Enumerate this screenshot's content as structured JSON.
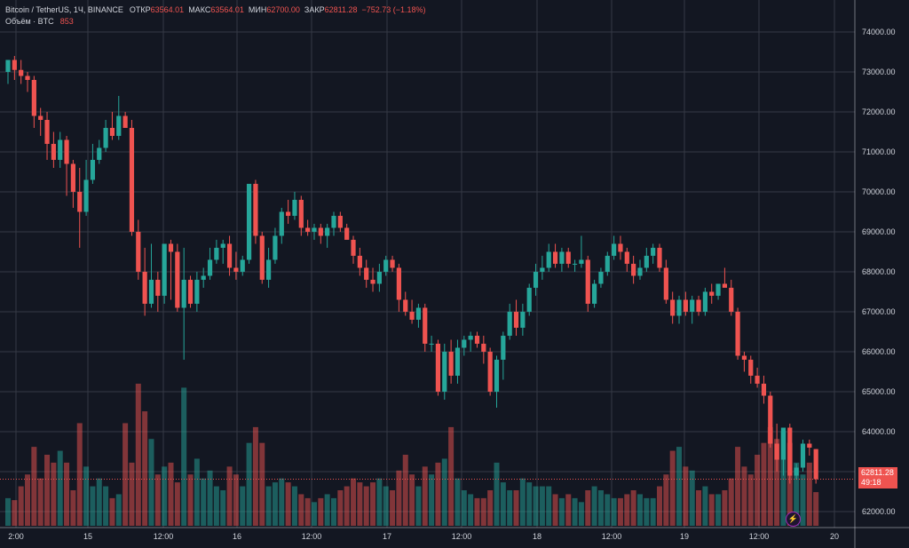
{
  "legend": {
    "symbol": "Bitcoin / TetherUS, 1Ч, BINANCE",
    "open_label": "ОТКР",
    "open": "63564.01",
    "high_label": "МАКС",
    "high": "63564.01",
    "low_label": "МИН",
    "low": "62700.00",
    "close_label": "ЗАКР",
    "close": "62811.28",
    "change": "−752.73 (−1.18%)",
    "volume_label": "Объём · BTC",
    "volume": "853"
  },
  "price_tag": {
    "price": "62811.28",
    "countdown": "49:18"
  },
  "colors": {
    "background": "#131722",
    "grid": "#363a45",
    "up": "#26a69a",
    "down": "#ef5350",
    "text": "#d1d4dc"
  },
  "chart_data": {
    "type": "candlestick",
    "title": "Bitcoin / TetherUS, 1Ч, BINANCE",
    "y_range": [
      61600,
      74800
    ],
    "y_ticks": [
      "74000.00",
      "73000.00",
      "72000.00",
      "71000.00",
      "70000.00",
      "69000.00",
      "68000.00",
      "67000.00",
      "66000.00",
      "65000.00",
      "64000.00",
      "63000.00",
      "62000.00"
    ],
    "x_ticks": [
      "2:00",
      "15",
      "12:00",
      "16",
      "12:00",
      "17",
      "12:00",
      "18",
      "12:00",
      "19",
      "12:00",
      "20"
    ],
    "volume_max": 3600,
    "candles": [
      {
        "o": 73000,
        "h": 73200,
        "l": 72700,
        "c": 73300,
        "v": 700
      },
      {
        "o": 73300,
        "h": 73400,
        "l": 72800,
        "c": 73050,
        "v": 650
      },
      {
        "o": 73050,
        "h": 73300,
        "l": 72700,
        "c": 72900,
        "v": 1000
      },
      {
        "o": 72900,
        "h": 73000,
        "l": 72500,
        "c": 72800,
        "v": 1300
      },
      {
        "o": 72800,
        "h": 72900,
        "l": 71600,
        "c": 71900,
        "v": 2000
      },
      {
        "o": 71900,
        "h": 72100,
        "l": 71400,
        "c": 71800,
        "v": 1200
      },
      {
        "o": 71800,
        "h": 72000,
        "l": 70800,
        "c": 71200,
        "v": 1800
      },
      {
        "o": 71200,
        "h": 71500,
        "l": 70600,
        "c": 70800,
        "v": 1600
      },
      {
        "o": 70800,
        "h": 71500,
        "l": 70600,
        "c": 71300,
        "v": 1900
      },
      {
        "o": 71300,
        "h": 71400,
        "l": 69900,
        "c": 70700,
        "v": 1600
      },
      {
        "o": 70700,
        "h": 70800,
        "l": 69600,
        "c": 70000,
        "v": 900
      },
      {
        "o": 70000,
        "h": 70600,
        "l": 68600,
        "c": 69500,
        "v": 2600
      },
      {
        "o": 69500,
        "h": 70800,
        "l": 69400,
        "c": 70300,
        "v": 1500
      },
      {
        "o": 70300,
        "h": 71200,
        "l": 70200,
        "c": 70800,
        "v": 1000
      },
      {
        "o": 70800,
        "h": 71300,
        "l": 70700,
        "c": 71100,
        "v": 1200
      },
      {
        "o": 71100,
        "h": 71800,
        "l": 71000,
        "c": 71600,
        "v": 1000
      },
      {
        "o": 71600,
        "h": 72000,
        "l": 71300,
        "c": 71400,
        "v": 700
      },
      {
        "o": 71400,
        "h": 72400,
        "l": 71300,
        "c": 71900,
        "v": 800
      },
      {
        "o": 71900,
        "h": 72000,
        "l": 71600,
        "c": 71600,
        "v": 2600
      },
      {
        "o": 71600,
        "h": 71800,
        "l": 68900,
        "c": 69000,
        "v": 1600
      },
      {
        "o": 69000,
        "h": 69300,
        "l": 67800,
        "c": 68000,
        "v": 3600
      },
      {
        "o": 68000,
        "h": 68600,
        "l": 66900,
        "c": 67200,
        "v": 2900
      },
      {
        "o": 67200,
        "h": 68700,
        "l": 67100,
        "c": 67800,
        "v": 2200
      },
      {
        "o": 67800,
        "h": 68000,
        "l": 67000,
        "c": 67400,
        "v": 1300
      },
      {
        "o": 67400,
        "h": 68700,
        "l": 67200,
        "c": 68700,
        "v": 1500
      },
      {
        "o": 68700,
        "h": 68800,
        "l": 67300,
        "c": 68500,
        "v": 1600
      },
      {
        "o": 68500,
        "h": 68700,
        "l": 67000,
        "c": 67100,
        "v": 1100
      },
      {
        "o": 67100,
        "h": 68600,
        "l": 65800,
        "c": 67800,
        "v": 3500
      },
      {
        "o": 67800,
        "h": 67900,
        "l": 67100,
        "c": 67200,
        "v": 1300
      },
      {
        "o": 67200,
        "h": 68000,
        "l": 67000,
        "c": 67800,
        "v": 1700
      },
      {
        "o": 67800,
        "h": 68100,
        "l": 67600,
        "c": 67900,
        "v": 1200
      },
      {
        "o": 67900,
        "h": 68600,
        "l": 67800,
        "c": 68300,
        "v": 1400
      },
      {
        "o": 68300,
        "h": 68800,
        "l": 68200,
        "c": 68600,
        "v": 1000
      },
      {
        "o": 68600,
        "h": 68800,
        "l": 68200,
        "c": 68700,
        "v": 900
      },
      {
        "o": 68700,
        "h": 68900,
        "l": 67900,
        "c": 68100,
        "v": 1500
      },
      {
        "o": 68100,
        "h": 68500,
        "l": 67800,
        "c": 68000,
        "v": 1300
      },
      {
        "o": 68000,
        "h": 68400,
        "l": 67900,
        "c": 68300,
        "v": 1000
      },
      {
        "o": 68300,
        "h": 70200,
        "l": 68200,
        "c": 70200,
        "v": 2100
      },
      {
        "o": 70200,
        "h": 70300,
        "l": 68700,
        "c": 68900,
        "v": 2500
      },
      {
        "o": 68900,
        "h": 69000,
        "l": 67700,
        "c": 67800,
        "v": 2100
      },
      {
        "o": 67800,
        "h": 68600,
        "l": 67600,
        "c": 68300,
        "v": 1000
      },
      {
        "o": 68300,
        "h": 69100,
        "l": 68200,
        "c": 68900,
        "v": 1100
      },
      {
        "o": 68900,
        "h": 69600,
        "l": 68700,
        "c": 69500,
        "v": 1200
      },
      {
        "o": 69500,
        "h": 69800,
        "l": 69200,
        "c": 69400,
        "v": 1100
      },
      {
        "o": 69400,
        "h": 70000,
        "l": 69300,
        "c": 69800,
        "v": 1000
      },
      {
        "o": 69800,
        "h": 69900,
        "l": 68900,
        "c": 69100,
        "v": 800
      },
      {
        "o": 69100,
        "h": 69300,
        "l": 68900,
        "c": 69000,
        "v": 700
      },
      {
        "o": 69000,
        "h": 69200,
        "l": 68800,
        "c": 69100,
        "v": 600
      },
      {
        "o": 69100,
        "h": 69200,
        "l": 68700,
        "c": 68900,
        "v": 700
      },
      {
        "o": 68900,
        "h": 69200,
        "l": 68600,
        "c": 69100,
        "v": 800
      },
      {
        "o": 69100,
        "h": 69500,
        "l": 68900,
        "c": 69400,
        "v": 700
      },
      {
        "o": 69400,
        "h": 69500,
        "l": 69000,
        "c": 69100,
        "v": 900
      },
      {
        "o": 69100,
        "h": 69200,
        "l": 68800,
        "c": 68800,
        "v": 1000
      },
      {
        "o": 68800,
        "h": 68900,
        "l": 68200,
        "c": 68400,
        "v": 1200
      },
      {
        "o": 68400,
        "h": 68600,
        "l": 67900,
        "c": 68100,
        "v": 1100
      },
      {
        "o": 68100,
        "h": 68300,
        "l": 67600,
        "c": 67800,
        "v": 1000
      },
      {
        "o": 67800,
        "h": 68100,
        "l": 67500,
        "c": 67700,
        "v": 1100
      },
      {
        "o": 67700,
        "h": 68200,
        "l": 67500,
        "c": 68000,
        "v": 1200
      },
      {
        "o": 68000,
        "h": 68400,
        "l": 67900,
        "c": 68300,
        "v": 1000
      },
      {
        "o": 68300,
        "h": 68400,
        "l": 68000,
        "c": 68100,
        "v": 900
      },
      {
        "o": 68100,
        "h": 68200,
        "l": 67000,
        "c": 67300,
        "v": 1400
      },
      {
        "o": 67300,
        "h": 67500,
        "l": 66900,
        "c": 67000,
        "v": 1800
      },
      {
        "o": 67000,
        "h": 67300,
        "l": 66700,
        "c": 66800,
        "v": 1300
      },
      {
        "o": 66800,
        "h": 67200,
        "l": 66600,
        "c": 67100,
        "v": 1000
      },
      {
        "o": 67100,
        "h": 67200,
        "l": 66000,
        "c": 66200,
        "v": 1500
      },
      {
        "o": 66200,
        "h": 66400,
        "l": 66000,
        "c": 66200,
        "v": 1300
      },
      {
        "o": 66200,
        "h": 66300,
        "l": 64900,
        "c": 65000,
        "v": 1600
      },
      {
        "o": 65000,
        "h": 66200,
        "l": 64800,
        "c": 66000,
        "v": 1700
      },
      {
        "o": 66000,
        "h": 66300,
        "l": 65200,
        "c": 65400,
        "v": 2500
      },
      {
        "o": 65400,
        "h": 66300,
        "l": 65200,
        "c": 66100,
        "v": 1200
      },
      {
        "o": 66100,
        "h": 66400,
        "l": 65900,
        "c": 66300,
        "v": 900
      },
      {
        "o": 66300,
        "h": 66500,
        "l": 66000,
        "c": 66400,
        "v": 800
      },
      {
        "o": 66400,
        "h": 66500,
        "l": 66100,
        "c": 66200,
        "v": 700
      },
      {
        "o": 66200,
        "h": 66400,
        "l": 65700,
        "c": 66000,
        "v": 700
      },
      {
        "o": 66000,
        "h": 66100,
        "l": 64900,
        "c": 65000,
        "v": 900
      },
      {
        "o": 65000,
        "h": 65900,
        "l": 64600,
        "c": 65800,
        "v": 1600
      },
      {
        "o": 65800,
        "h": 66500,
        "l": 65300,
        "c": 66400,
        "v": 1100
      },
      {
        "o": 66400,
        "h": 67200,
        "l": 66300,
        "c": 67000,
        "v": 900
      },
      {
        "o": 67000,
        "h": 67300,
        "l": 66400,
        "c": 66600,
        "v": 900
      },
      {
        "o": 66600,
        "h": 67200,
        "l": 66400,
        "c": 67000,
        "v": 1200
      },
      {
        "o": 67000,
        "h": 67700,
        "l": 66900,
        "c": 67600,
        "v": 1100
      },
      {
        "o": 67600,
        "h": 68200,
        "l": 67400,
        "c": 68000,
        "v": 1000
      },
      {
        "o": 68000,
        "h": 68400,
        "l": 67800,
        "c": 68100,
        "v": 1000
      },
      {
        "o": 68100,
        "h": 68700,
        "l": 68000,
        "c": 68500,
        "v": 1000
      },
      {
        "o": 68500,
        "h": 68700,
        "l": 68100,
        "c": 68200,
        "v": 800
      },
      {
        "o": 68200,
        "h": 68600,
        "l": 68000,
        "c": 68500,
        "v": 700
      },
      {
        "o": 68500,
        "h": 68600,
        "l": 68100,
        "c": 68200,
        "v": 800
      },
      {
        "o": 68200,
        "h": 68300,
        "l": 68000,
        "c": 68200,
        "v": 700
      },
      {
        "o": 68200,
        "h": 68900,
        "l": 68100,
        "c": 68300,
        "v": 600
      },
      {
        "o": 68300,
        "h": 68400,
        "l": 67000,
        "c": 67200,
        "v": 900
      },
      {
        "o": 67200,
        "h": 67800,
        "l": 67100,
        "c": 67700,
        "v": 1000
      },
      {
        "o": 67700,
        "h": 68100,
        "l": 67600,
        "c": 68000,
        "v": 900
      },
      {
        "o": 68000,
        "h": 68500,
        "l": 67900,
        "c": 68400,
        "v": 800
      },
      {
        "o": 68400,
        "h": 68900,
        "l": 68300,
        "c": 68700,
        "v": 700
      },
      {
        "o": 68700,
        "h": 68900,
        "l": 68300,
        "c": 68500,
        "v": 700
      },
      {
        "o": 68500,
        "h": 68600,
        "l": 68000,
        "c": 68200,
        "v": 800
      },
      {
        "o": 68200,
        "h": 68400,
        "l": 67700,
        "c": 67900,
        "v": 900
      },
      {
        "o": 67900,
        "h": 68300,
        "l": 67800,
        "c": 68100,
        "v": 800
      },
      {
        "o": 68100,
        "h": 68600,
        "l": 68000,
        "c": 68400,
        "v": 700
      },
      {
        "o": 68400,
        "h": 68700,
        "l": 68200,
        "c": 68600,
        "v": 700
      },
      {
        "o": 68600,
        "h": 68700,
        "l": 68000,
        "c": 68100,
        "v": 1000
      },
      {
        "o": 68100,
        "h": 68300,
        "l": 67200,
        "c": 67300,
        "v": 1300
      },
      {
        "o": 67300,
        "h": 67500,
        "l": 66700,
        "c": 66900,
        "v": 1900
      },
      {
        "o": 66900,
        "h": 67400,
        "l": 66700,
        "c": 67300,
        "v": 2000
      },
      {
        "o": 67300,
        "h": 67500,
        "l": 66900,
        "c": 67000,
        "v": 1500
      },
      {
        "o": 67000,
        "h": 67400,
        "l": 66700,
        "c": 67300,
        "v": 1400
      },
      {
        "o": 67300,
        "h": 67400,
        "l": 66900,
        "c": 67000,
        "v": 900
      },
      {
        "o": 67000,
        "h": 67600,
        "l": 66900,
        "c": 67500,
        "v": 1000
      },
      {
        "o": 67500,
        "h": 67700,
        "l": 67200,
        "c": 67400,
        "v": 800
      },
      {
        "o": 67400,
        "h": 67700,
        "l": 67300,
        "c": 67700,
        "v": 800
      },
      {
        "o": 67700,
        "h": 68100,
        "l": 67600,
        "c": 67600,
        "v": 900
      },
      {
        "o": 67600,
        "h": 67800,
        "l": 66900,
        "c": 67000,
        "v": 1200
      },
      {
        "o": 67000,
        "h": 67100,
        "l": 65800,
        "c": 65900,
        "v": 2000
      },
      {
        "o": 65900,
        "h": 66000,
        "l": 65500,
        "c": 65800,
        "v": 1500
      },
      {
        "o": 65800,
        "h": 65900,
        "l": 65200,
        "c": 65400,
        "v": 1300
      },
      {
        "o": 65400,
        "h": 65600,
        "l": 65100,
        "c": 65200,
        "v": 1800
      },
      {
        "o": 65200,
        "h": 65400,
        "l": 64700,
        "c": 64900,
        "v": 2100
      },
      {
        "o": 64900,
        "h": 65000,
        "l": 63600,
        "c": 63700,
        "v": 2500
      },
      {
        "o": 63700,
        "h": 64200,
        "l": 63000,
        "c": 63300,
        "v": 2200
      },
      {
        "o": 63300,
        "h": 64100,
        "l": 62900,
        "c": 64100,
        "v": 2400
      },
      {
        "o": 64100,
        "h": 64200,
        "l": 62700,
        "c": 62900,
        "v": 2100
      },
      {
        "o": 62900,
        "h": 63200,
        "l": 62800,
        "c": 63100,
        "v": 1600
      },
      {
        "o": 63100,
        "h": 63800,
        "l": 63000,
        "c": 63700,
        "v": 1300
      },
      {
        "o": 63700,
        "h": 63800,
        "l": 63400,
        "c": 63600,
        "v": 1600
      },
      {
        "o": 63564.01,
        "h": 63564.01,
        "l": 62700,
        "c": 62811.28,
        "v": 853
      }
    ]
  }
}
